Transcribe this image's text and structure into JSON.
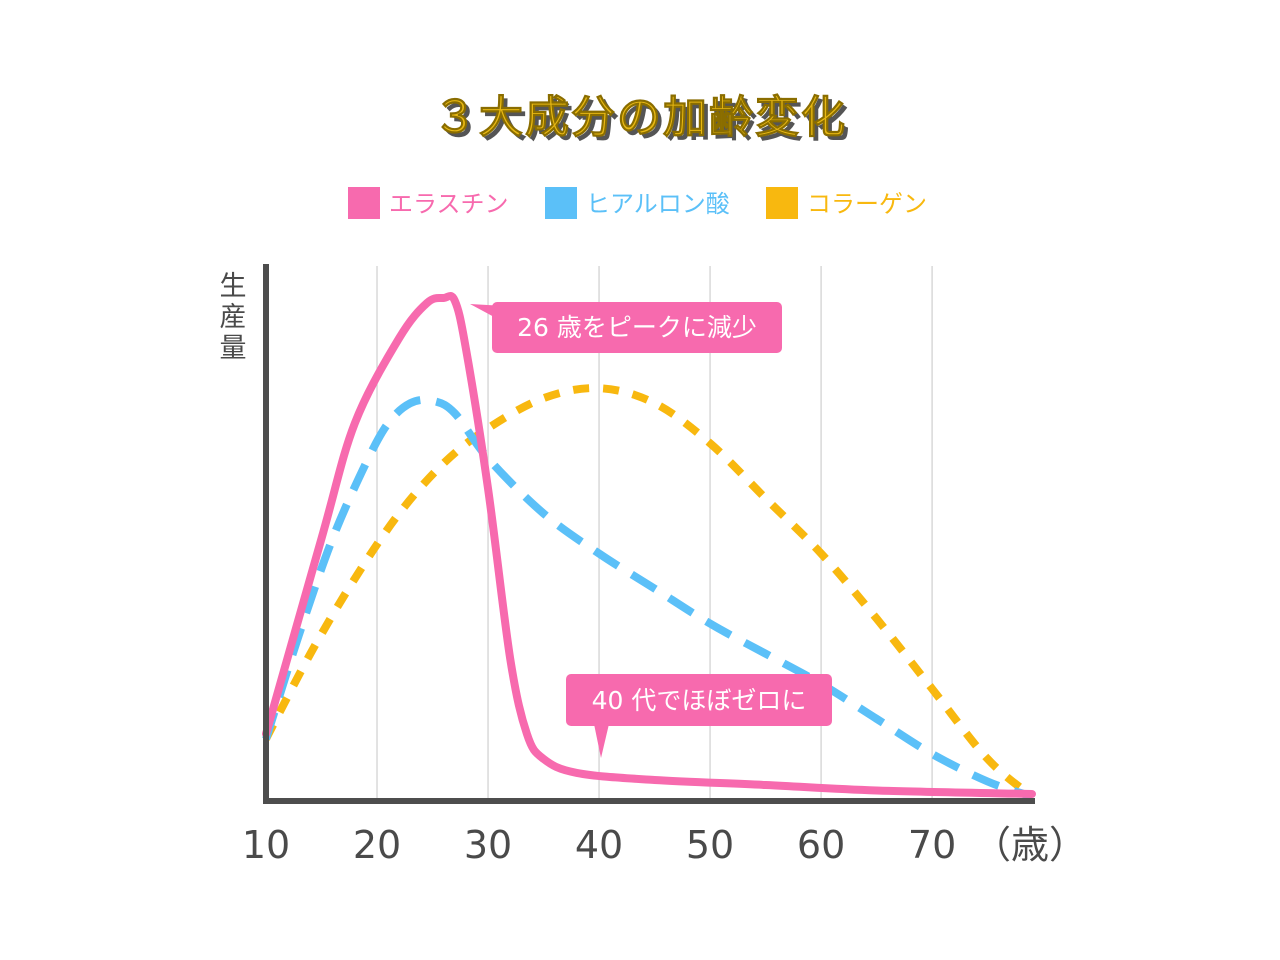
{
  "chart_data": {
    "type": "line",
    "title": "３大成分の加齢変化",
    "ylabel": "生産量",
    "xunit": "（歳）",
    "x_ticks": [
      "10",
      "20",
      "30",
      "40",
      "50",
      "60",
      "70"
    ],
    "xlim": [
      10,
      79
    ],
    "ylim": [
      0,
      100
    ],
    "grid": true,
    "legend_position": "top",
    "series": [
      {
        "name": "エラスチン",
        "color": "#F76AAE",
        "style": "solid",
        "points": [
          [
            10,
            13
          ],
          [
            15,
            52
          ],
          [
            18,
            75
          ],
          [
            22,
            92
          ],
          [
            24.5,
            99
          ],
          [
            26,
            100
          ],
          [
            27,
            99.5
          ],
          [
            28,
            90
          ],
          [
            30,
            62
          ],
          [
            32,
            28
          ],
          [
            33.5,
            13
          ],
          [
            35,
            8
          ],
          [
            38,
            5.2
          ],
          [
            45,
            3.8
          ],
          [
            55,
            2.8
          ],
          [
            65,
            1.7
          ],
          [
            79,
            1
          ]
        ]
      },
      {
        "name": "ヒアルロン酸",
        "color": "#5BC0F8",
        "style": "dashed",
        "points": [
          [
            10,
            12
          ],
          [
            13,
            33
          ],
          [
            16,
            52
          ],
          [
            19,
            67
          ],
          [
            21,
            75
          ],
          [
            23,
            79
          ],
          [
            25,
            79.5
          ],
          [
            27,
            77
          ],
          [
            30,
            68
          ],
          [
            35,
            57
          ],
          [
            40,
            49
          ],
          [
            45,
            42
          ],
          [
            50,
            35
          ],
          [
            55,
            29
          ],
          [
            60,
            23
          ],
          [
            65,
            16
          ],
          [
            70,
            9
          ],
          [
            75,
            3.5
          ],
          [
            79,
            0.5
          ]
        ]
      },
      {
        "name": "コラーゲン",
        "color": "#F8B80F",
        "style": "dashed",
        "points": [
          [
            10,
            12
          ],
          [
            14,
            29
          ],
          [
            18,
            44
          ],
          [
            22,
            57
          ],
          [
            26,
            67
          ],
          [
            30,
            74
          ],
          [
            35,
            80
          ],
          [
            40,
            82
          ],
          [
            45,
            79
          ],
          [
            50,
            71
          ],
          [
            55,
            60
          ],
          [
            60,
            49
          ],
          [
            65,
            36
          ],
          [
            70,
            22
          ],
          [
            75,
            8
          ],
          [
            79,
            0.5
          ]
        ]
      }
    ],
    "annotations": [
      {
        "text": "26 歳をピークに減少",
        "target_x": 26,
        "target_y": 100
      },
      {
        "text": "40 代でほぼゼロに",
        "target_x": 40,
        "target_y": 5.2
      }
    ]
  }
}
